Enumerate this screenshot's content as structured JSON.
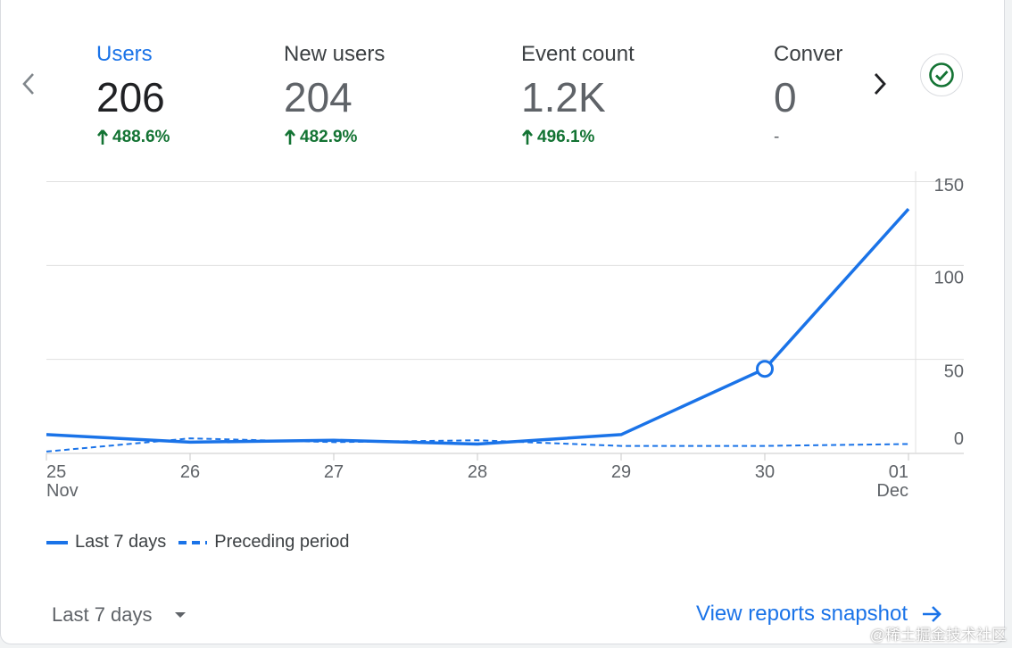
{
  "metrics": [
    {
      "label": "Users",
      "value": "206",
      "delta": "488.6%",
      "trend": "up"
    },
    {
      "label": "New users",
      "value": "204",
      "delta": "482.9%",
      "trend": "up"
    },
    {
      "label": "Event count",
      "value": "1.2K",
      "delta": "496.1%",
      "trend": "up"
    },
    {
      "label": "Conver",
      "value": "0",
      "delta": "-",
      "trend": "none"
    }
  ],
  "colors": {
    "accent": "#1a73e8",
    "positive": "#137333",
    "neutral": "#5f6368"
  },
  "chart_data": {
    "type": "line",
    "x": [
      "25 Nov",
      "26",
      "27",
      "28",
      "29",
      "30",
      "01 Dec"
    ],
    "x_tick_lines": [
      [
        "25",
        "Nov"
      ],
      [
        "26"
      ],
      [
        "27"
      ],
      [
        "28"
      ],
      [
        "29"
      ],
      [
        "30"
      ],
      [
        "01",
        "Dec"
      ]
    ],
    "series": [
      {
        "name": "Last 7 days",
        "style": "solid",
        "values": [
          10,
          6,
          7,
          5,
          10,
          45,
          130
        ]
      },
      {
        "name": "Preceding period",
        "style": "dashed",
        "values": [
          1,
          8,
          6,
          7,
          4,
          4,
          5
        ]
      }
    ],
    "ylim": [
      0,
      150
    ],
    "y_ticks": [
      "0",
      "50",
      "100",
      "150"
    ],
    "highlight_index": 5,
    "grid": true
  },
  "legend": {
    "last": "Last 7 days",
    "preceding": "Preceding period"
  },
  "date_range": {
    "label": "Last 7 days"
  },
  "view_link": {
    "label": "View reports snapshot"
  },
  "watermark": "@稀土掘金技术社区"
}
